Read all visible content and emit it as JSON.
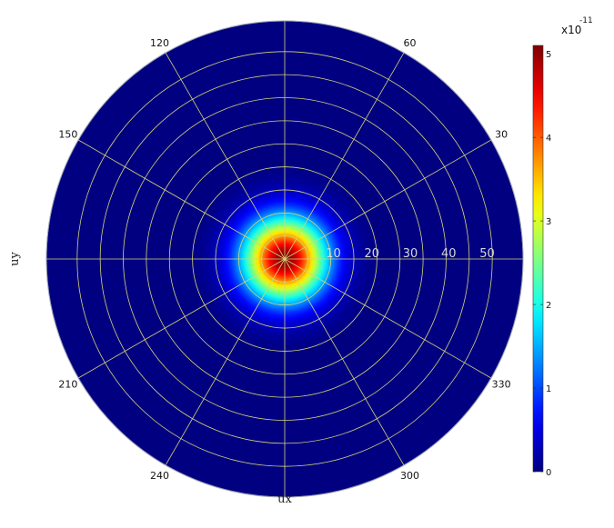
{
  "chart_data": {
    "type": "heatmap",
    "projection": "polar",
    "title": "",
    "xlabel": "ux",
    "ylabel": "uy",
    "colormap": "jet",
    "background_value": 0,
    "peak": {
      "r": 0,
      "value": 5.1,
      "sigma_r": 7.5
    },
    "radial_ticks": {
      "values": [
        10,
        20,
        30,
        40,
        50
      ],
      "labels": [
        "10",
        "20",
        "30",
        "40",
        "50"
      ]
    },
    "r_max": 62,
    "grid_rings": [
      6,
      12,
      18,
      24,
      30,
      36,
      42,
      48,
      54,
      62
    ],
    "grid_spokes_deg": [
      0,
      30,
      60,
      90,
      120,
      150,
      180,
      210,
      240,
      270,
      300,
      330
    ],
    "angle_labels": [
      {
        "deg": 30,
        "label": "30"
      },
      {
        "deg": 60,
        "label": "60"
      },
      {
        "deg": 120,
        "label": "120"
      },
      {
        "deg": 150,
        "label": "150"
      },
      {
        "deg": 210,
        "label": "210"
      },
      {
        "deg": 240,
        "label": "240"
      },
      {
        "deg": 300,
        "label": "300"
      },
      {
        "deg": 330,
        "label": "330"
      }
    ],
    "grid_color": "#d4d47a",
    "colorbar": {
      "min": 0,
      "max": 5.1,
      "ticks": [
        0,
        1,
        2,
        3,
        4,
        5
      ],
      "tick_labels": [
        "0",
        "1",
        "2",
        "3",
        "4",
        "5"
      ],
      "multiplier_base": "x10",
      "multiplier_exponent": "-11"
    }
  }
}
